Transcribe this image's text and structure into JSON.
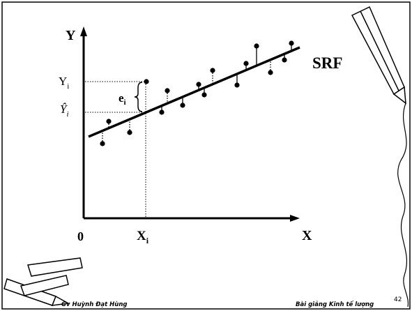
{
  "axes": {
    "y": "Y",
    "x": "X",
    "origin": "0"
  },
  "labels": {
    "y_i": {
      "base": "Y",
      "sub": "i"
    },
    "y_hat_i": {
      "base": "Ŷ",
      "sub": "i"
    },
    "e_i": {
      "base": "e",
      "sub": "i"
    },
    "x_i": {
      "base": "X",
      "sub": "i"
    },
    "srf": "SRF"
  },
  "footer": {
    "author": "Gv Huỳnh Đạt Hùng",
    "course": "Bài giảng Kinh tế lượng",
    "page": "42"
  }
}
